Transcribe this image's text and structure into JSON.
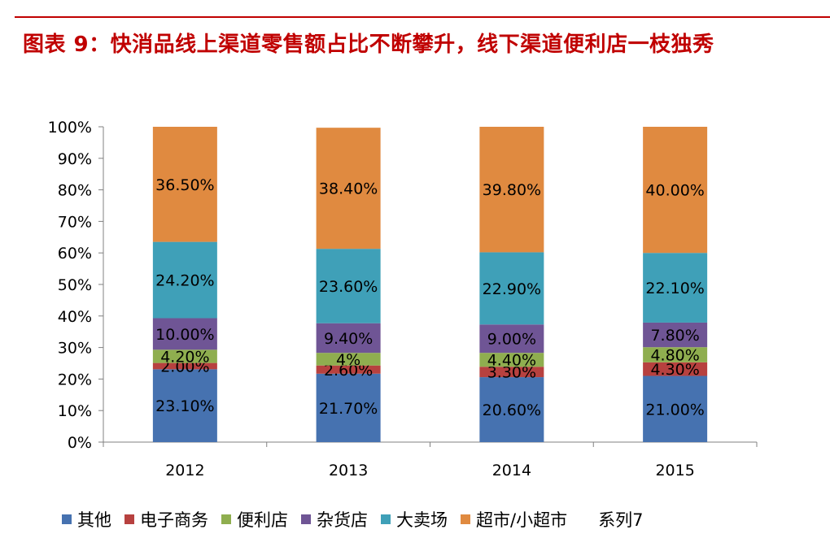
{
  "title": "图表 9：快消品线上渠道零售额占比不断攀升，线下渠道便利店一枝独秀",
  "chart_data": {
    "type": "bar",
    "stacked": true,
    "categories": [
      "2012",
      "2013",
      "2014",
      "2015"
    ],
    "ylim": [
      0,
      100
    ],
    "yticks": [
      "0%",
      "10%",
      "20%",
      "30%",
      "40%",
      "50%",
      "60%",
      "70%",
      "80%",
      "90%",
      "100%"
    ],
    "series": [
      {
        "name": "其他",
        "color": "#4672b0",
        "values": [
          23.1,
          21.7,
          20.6,
          21.0
        ],
        "labels": [
          "23.10%",
          "21.70%",
          "20.60%",
          "21.00%"
        ]
      },
      {
        "name": "电子商务",
        "color": "#b7413f",
        "values": [
          2.0,
          2.6,
          3.3,
          4.3
        ],
        "labels": [
          "2.00%",
          "2.60%",
          "3.30%",
          "4.30%"
        ]
      },
      {
        "name": "便利店",
        "color": "#8fae4f",
        "values": [
          4.2,
          4.0,
          4.4,
          4.8
        ],
        "labels": [
          "4.20%",
          "4%",
          "4.40%",
          "4.80%"
        ]
      },
      {
        "name": "杂货店",
        "color": "#6f5595",
        "values": [
          10.0,
          9.4,
          9.0,
          7.8
        ],
        "labels": [
          "10.00%",
          "9.40%",
          "9.00%",
          "7.80%"
        ]
      },
      {
        "name": "大卖场",
        "color": "#3fa0b8",
        "values": [
          24.2,
          23.6,
          22.9,
          22.1
        ],
        "labels": [
          "24.20%",
          "23.60%",
          "22.90%",
          "22.10%"
        ]
      },
      {
        "name": "超市/小超市",
        "color": "#e08a40",
        "values": [
          36.5,
          38.4,
          39.8,
          40.0
        ],
        "labels": [
          "36.50%",
          "38.40%",
          "39.80%",
          "40.00%"
        ]
      }
    ],
    "legend": {
      "items": [
        "其他",
        "电子商务",
        "便利店",
        "杂货店",
        "大卖场",
        "超市/小超市"
      ],
      "extra": "系列7",
      "position": "bottom"
    }
  }
}
